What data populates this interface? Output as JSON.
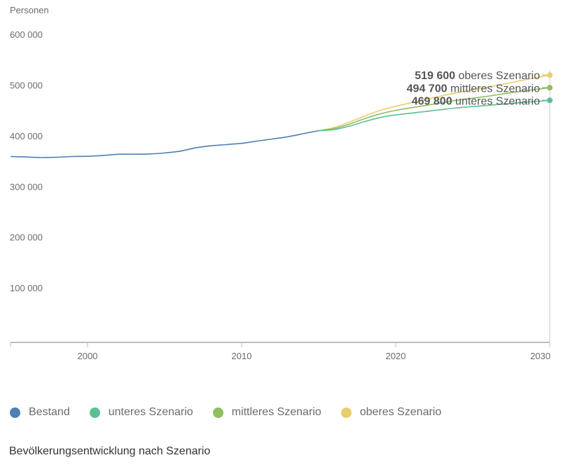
{
  "chart_data": {
    "type": "line",
    "title": "Bevölkerungsentwicklung nach Szenario",
    "ylabel": "Personen",
    "xlabel": "",
    "xlim": [
      1995,
      2030
    ],
    "ylim": [
      0,
      600000
    ],
    "grid": false,
    "legend_position": "bottom",
    "y_ticks": [
      {
        "value": 600000,
        "label": "600 000"
      },
      {
        "value": 500000,
        "label": "500 000"
      },
      {
        "value": 400000,
        "label": "400 000"
      },
      {
        "value": 300000,
        "label": "300 000"
      },
      {
        "value": 200000,
        "label": "200 000"
      },
      {
        "value": 100000,
        "label": "100 000"
      }
    ],
    "x_ticks": [
      {
        "value": 2000,
        "label": "2000"
      },
      {
        "value": 2010,
        "label": "2010"
      },
      {
        "value": 2020,
        "label": "2020"
      },
      {
        "value": 2030,
        "label": "2030"
      }
    ],
    "series": [
      {
        "name": "Bestand",
        "color": "#4e7fb3",
        "x": [
          1995,
          1996,
          1997,
          1998,
          1999,
          2000,
          2001,
          2002,
          2003,
          2004,
          2005,
          2006,
          2007,
          2008,
          2009,
          2010,
          2011,
          2012,
          2013,
          2014,
          2015
        ],
        "values": [
          359000,
          358000,
          357000,
          357500,
          359000,
          359500,
          361000,
          363500,
          363500,
          364000,
          366000,
          369500,
          376000,
          380000,
          382500,
          385000,
          389500,
          393500,
          398000,
          404000,
          410000
        ]
      },
      {
        "name": "unteres Szenario",
        "color": "#5bbf95",
        "x": [
          2015,
          2016,
          2017,
          2018,
          2019,
          2020,
          2022,
          2024,
          2026,
          2028,
          2030
        ],
        "values": [
          410000,
          412000,
          419000,
          428000,
          436000,
          441000,
          448000,
          455000,
          460000,
          465000,
          469800
        ]
      },
      {
        "name": "mittleres Szenario",
        "color": "#8fbe5f",
        "x": [
          2015,
          2016,
          2017,
          2018,
          2019,
          2020,
          2022,
          2024,
          2026,
          2028,
          2030
        ],
        "values": [
          410000,
          414000,
          423000,
          434000,
          443000,
          450000,
          460000,
          470000,
          478000,
          487000,
          494700
        ]
      },
      {
        "name": "oberes Szenario",
        "color": "#e8cd6b",
        "x": [
          2015,
          2016,
          2017,
          2018,
          2019,
          2020,
          2022,
          2024,
          2026,
          2028,
          2030
        ],
        "values": [
          410000,
          416000,
          427000,
          439000,
          450000,
          458000,
          472000,
          485000,
          496000,
          508000,
          519600
        ]
      }
    ],
    "annotations": [
      {
        "value_label": "519 600",
        "text": "oberes Szenario",
        "series": "oberes Szenario",
        "value": 519600
      },
      {
        "value_label": "494 700",
        "text": "mittleres Szenario",
        "series": "mittleres Szenario",
        "value": 494700
      },
      {
        "value_label": "469 800",
        "text": "unteres Szenario",
        "series": "unteres Szenario",
        "value": 469800
      }
    ]
  },
  "legend": [
    {
      "label": "Bestand",
      "color": "#4e7fb3"
    },
    {
      "label": "unteres Szenario",
      "color": "#5bbf95"
    },
    {
      "label": "mittleres Szenario",
      "color": "#8fbe5f"
    },
    {
      "label": "oberes Szenario",
      "color": "#e8cd6b"
    }
  ],
  "caption": "Bevölkerungsentwicklung nach Szenario"
}
